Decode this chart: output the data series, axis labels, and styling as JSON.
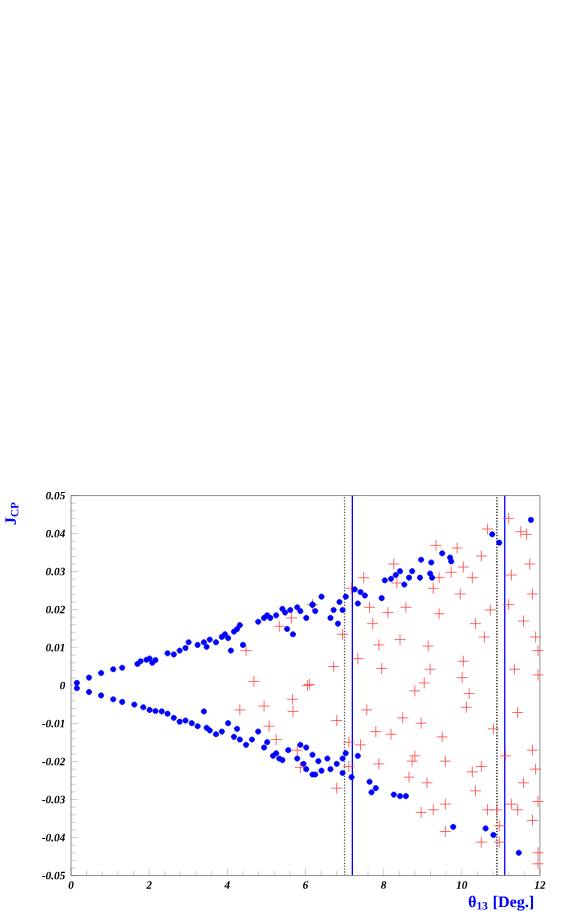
{
  "chart_data": {
    "type": "scatter",
    "xlabel": "θ$_{13}$ [Deg.]",
    "ylabel": "J$_{CP}$",
    "xlim": [
      0,
      12
    ],
    "ylim": [
      -0.05,
      0.05
    ],
    "xticks": [
      0,
      2,
      4,
      6,
      8,
      10,
      12
    ],
    "yticks": [
      -0.05,
      -0.04,
      -0.03,
      -0.02,
      -0.01,
      0,
      0.01,
      0.02,
      0.03,
      0.04,
      0.05
    ],
    "ref_lines": [
      {
        "axis": "x",
        "value": 7.0,
        "color": "#555555",
        "line_style": "dotted"
      },
      {
        "axis": "x",
        "value": 7.2,
        "color": "#0000ff",
        "line_style": "solid"
      },
      {
        "axis": "x",
        "value": 10.9,
        "color": "#000000",
        "line_style": "dotted"
      },
      {
        "axis": "x",
        "value": 11.1,
        "color": "#0000ff",
        "line_style": "solid"
      }
    ],
    "series": [
      {
        "color": "#ff4444",
        "marker": "cross",
        "x": [
          4.48,
          4.68,
          4.32,
          4.94,
          5.07,
          5.25,
          5.33,
          5.67,
          5.68,
          6.05,
          5.79,
          5.87,
          6.18,
          5.64,
          6.1,
          6.72,
          6.95,
          7.34,
          7.57,
          7.8,
          7.95,
          7.88,
          8.19,
          8.11,
          8.34,
          8.26,
          8.42,
          8.57,
          8.49,
          8.73,
          8.8,
          8.96,
          9.04,
          9.14,
          9.19,
          9.27,
          9.42,
          9.5,
          9.58,
          9.34,
          9.88,
          9.73,
          9.96,
          10.04,
          10.01,
          10.12,
          10.19,
          10.27,
          10.35,
          10.27,
          10.35,
          10.5,
          10.58,
          10.5,
          10.66,
          10.73,
          10.81,
          10.89,
          10.96,
          11.2,
          11.27,
          11.35,
          11.43,
          11.51,
          11.58,
          11.66,
          11.74,
          11.81,
          11.89,
          11.95,
          11.95,
          11.81,
          11.89,
          11.95,
          11.81,
          11.95,
          11.95,
          11.58,
          11.43,
          11.27,
          9.58,
          9.27,
          8.96,
          9.11,
          8.65,
          8.8,
          7.88,
          7.41,
          6.8,
          7.11,
          7.11,
          6.8,
          9.58,
          10.5,
          10.66,
          10.96,
          11.12,
          11.2,
          9.42,
          10.04,
          7.72,
          7.49,
          7.18,
          7.64
        ],
        "values": [
          0.0092,
          0.0011,
          -0.0064,
          -0.0054,
          -0.0107,
          -0.0142,
          0.0156,
          -0.0036,
          -0.0068,
          0.0,
          -0.017,
          -0.0216,
          0.0213,
          0.0178,
          0.0003,
          0.005,
          0.0135,
          0.0071,
          -0.0064,
          -0.0121,
          0.0045,
          0.0107,
          -0.0128,
          0.0192,
          0.027,
          0.032,
          0.0121,
          0.0206,
          -0.0085,
          -0.0199,
          -0.0014,
          -0.0099,
          0.0007,
          0.0104,
          0.0043,
          0.0256,
          0.0189,
          -0.0135,
          -0.0199,
          0.0369,
          0.0362,
          0.0298,
          0.0241,
          0.0064,
          0.0021,
          -0.0057,
          -0.0021,
          0.0284,
          0.0163,
          -0.0227,
          -0.0277,
          -0.0213,
          0.0128,
          0.0341,
          0.0412,
          0.0199,
          -0.0114,
          -0.0327,
          -0.0412,
          0.044,
          0.0291,
          0.0043,
          -0.0071,
          0.0405,
          0.017,
          0.0398,
          0.032,
          0.0241,
          0.0128,
          0.0092,
          0.0028,
          -0.017,
          -0.022,
          -0.0305,
          -0.0355,
          -0.044,
          -0.0469,
          -0.0256,
          -0.0327,
          -0.0312,
          -0.0312,
          -0.0327,
          -0.0334,
          -0.0256,
          -0.0241,
          -0.0185,
          -0.0206,
          -0.0156,
          -0.0092,
          -0.0149,
          -0.0213,
          -0.027,
          -0.0384,
          -0.0412,
          -0.0327,
          -0.0369,
          -0.0185,
          0.0213,
          0.0284,
          0.0312,
          0.0163,
          0.0284,
          0.0256,
          0.0206
        ]
      },
      {
        "color": "#0000ff",
        "marker": "circle",
        "x": [
          0.15,
          0.46,
          0.77,
          1.08,
          1.31,
          1.7,
          1.78,
          1.93,
          2.01,
          2.08,
          2.16,
          2.47,
          2.63,
          2.78,
          2.93,
          3.01,
          3.24,
          3.4,
          3.47,
          3.55,
          3.71,
          3.86,
          3.94,
          4.02,
          4.09,
          4.17,
          4.25,
          4.32,
          4.4,
          4.79,
          4.94,
          5.02,
          5.1,
          5.25,
          5.41,
          5.48,
          5.53,
          5.61,
          5.68,
          5.79,
          5.87,
          6.18,
          0.15,
          0.46,
          0.77,
          1.08,
          1.31,
          1.62,
          1.85,
          2.01,
          2.16,
          2.32,
          2.47,
          2.63,
          2.78,
          2.93,
          3.09,
          3.24,
          3.4,
          3.47,
          3.55,
          3.71,
          3.86,
          4.02,
          4.17,
          4.25,
          4.32,
          4.48,
          4.63,
          4.79,
          4.94,
          5.02,
          5.17,
          5.25,
          5.33,
          5.41,
          5.56,
          5.79,
          5.87,
          5.95,
          6.02,
          6.18,
          6.33,
          6.02,
          6.18,
          6.25,
          6.41,
          6.64,
          6.72,
          6.83,
          6.87,
          6.95,
          7.03,
          7.26,
          7.34,
          7.41,
          7.52,
          7.95,
          8.03,
          8.19,
          8.31,
          8.42,
          8.53,
          8.65,
          8.73,
          8.93,
          8.96,
          9.19,
          9.22,
          9.24,
          9.5,
          9.7,
          9.73,
          10.78,
          10.96,
          11.77,
          6.02,
          6.18,
          6.25,
          6.41,
          6.56,
          6.64,
          6.8,
          6.95,
          7.03,
          6.95,
          7.18,
          7.34,
          7.64,
          7.69,
          7.8,
          8.26,
          8.42,
          8.57,
          9.78,
          10.61,
          10.81,
          11.46
        ],
        "values": [
          0.0007,
          0.0021,
          0.0033,
          0.0043,
          0.0047,
          0.0057,
          0.0064,
          0.0068,
          0.0071,
          0.006,
          0.0067,
          0.0085,
          0.0082,
          0.0092,
          0.0099,
          0.0114,
          0.0107,
          0.0114,
          0.0102,
          0.0121,
          0.0114,
          0.0128,
          0.0135,
          0.0125,
          0.0092,
          0.0142,
          0.0149,
          0.0159,
          0.0107,
          0.0168,
          0.0178,
          0.0185,
          0.0178,
          0.0185,
          0.0202,
          0.0192,
          0.0149,
          0.0199,
          0.0135,
          0.0206,
          0.0196,
          0.0213,
          -0.0007,
          -0.0017,
          -0.0026,
          -0.0036,
          -0.0043,
          -0.005,
          -0.0057,
          -0.0064,
          -0.0067,
          -0.0068,
          -0.0074,
          -0.0085,
          -0.0095,
          -0.0092,
          -0.0099,
          -0.0107,
          -0.0068,
          -0.0111,
          -0.0118,
          -0.0128,
          -0.0121,
          -0.0099,
          -0.0135,
          -0.0114,
          -0.0142,
          -0.0156,
          -0.0142,
          -0.0121,
          -0.0163,
          -0.0149,
          -0.0185,
          -0.0178,
          -0.0192,
          -0.0196,
          -0.017,
          -0.0192,
          -0.0156,
          -0.0206,
          -0.022,
          -0.0234,
          -0.0199,
          0.0178,
          0.0213,
          0.0196,
          0.0234,
          0.0178,
          0.0199,
          0.0163,
          0.022,
          0.0199,
          0.0234,
          0.0253,
          0.0216,
          0.0246,
          0.0237,
          0.023,
          0.0277,
          0.0281,
          0.0291,
          0.0301,
          0.0266,
          0.0284,
          0.0301,
          0.0284,
          0.0331,
          0.0295,
          0.0324,
          0.0284,
          0.0348,
          0.0337,
          0.0327,
          0.0398,
          0.0376,
          0.0436,
          -0.0163,
          -0.0182,
          -0.0234,
          -0.0224,
          -0.0192,
          -0.022,
          -0.0206,
          -0.0192,
          -0.0178,
          -0.023,
          -0.0241,
          -0.0185,
          -0.0253,
          -0.0281,
          -0.027,
          -0.0287,
          -0.0291,
          -0.0291,
          -0.0372,
          -0.0376,
          -0.0393,
          -0.044
        ]
      }
    ]
  }
}
